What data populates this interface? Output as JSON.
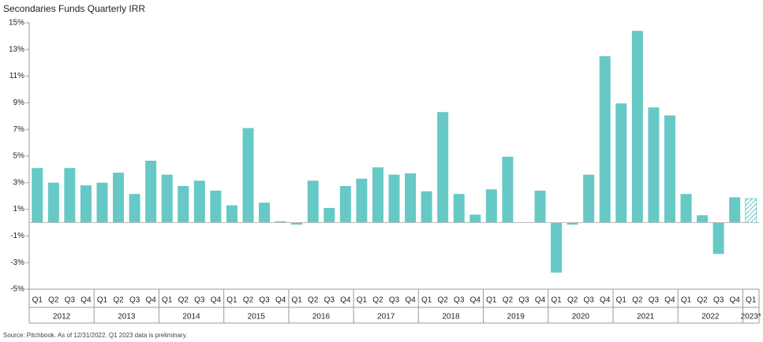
{
  "chart_data": {
    "type": "bar",
    "title": "Secondaries Funds Quarterly IRR",
    "source": "Source: Pitchbook. As of 12/31/2022. Q1 2023 data is preliminary.",
    "color": "#66c9c5",
    "ylim": [
      -5,
      15
    ],
    "yticks": [
      {
        "value": -5,
        "label": "-5%"
      },
      {
        "value": -3,
        "label": "-3%"
      },
      {
        "value": -1,
        "label": "-1%"
      },
      {
        "value": 1,
        "label": "1%"
      },
      {
        "value": 3,
        "label": "3%"
      },
      {
        "value": 5,
        "label": "5%"
      },
      {
        "value": 7,
        "label": "7%"
      },
      {
        "value": 9,
        "label": "9%"
      },
      {
        "value": 11,
        "label": "11%"
      },
      {
        "value": 13,
        "label": "13%"
      },
      {
        "value": 15,
        "label": "15%"
      }
    ],
    "groups": [
      {
        "name": "2012",
        "categories": [
          "Q1",
          "Q2",
          "Q3",
          "Q4"
        ],
        "values": [
          4.1,
          3.0,
          4.1,
          2.8
        ]
      },
      {
        "name": "2013",
        "categories": [
          "Q1",
          "Q2",
          "Q3",
          "Q4"
        ],
        "values": [
          3.0,
          3.75,
          2.15,
          4.65
        ]
      },
      {
        "name": "2014",
        "categories": [
          "Q1",
          "Q2",
          "Q3",
          "Q4"
        ],
        "values": [
          3.6,
          2.75,
          3.15,
          2.4
        ]
      },
      {
        "name": "2015",
        "categories": [
          "Q1",
          "Q2",
          "Q3",
          "Q4"
        ],
        "values": [
          1.3,
          7.1,
          1.5,
          0.1
        ]
      },
      {
        "name": "2016",
        "categories": [
          "Q1",
          "Q2",
          "Q3",
          "Q4"
        ],
        "values": [
          -0.15,
          3.15,
          1.1,
          2.75
        ]
      },
      {
        "name": "2017",
        "categories": [
          "Q1",
          "Q2",
          "Q3",
          "Q4"
        ],
        "values": [
          3.3,
          4.15,
          3.6,
          3.7
        ]
      },
      {
        "name": "2018",
        "categories": [
          "Q1",
          "Q2",
          "Q3",
          "Q4"
        ],
        "values": [
          2.35,
          8.3,
          2.15,
          0.6
        ]
      },
      {
        "name": "2019",
        "categories": [
          "Q1",
          "Q2",
          "Q3",
          "Q4"
        ],
        "values": [
          2.5,
          4.95,
          0,
          2.4
        ]
      },
      {
        "name": "2020",
        "categories": [
          "Q1",
          "Q2",
          "Q3",
          "Q4"
        ],
        "values": [
          -3.75,
          -0.15,
          3.6,
          12.5
        ]
      },
      {
        "name": "2021",
        "categories": [
          "Q1",
          "Q2",
          "Q3",
          "Q4"
        ],
        "values": [
          8.95,
          14.4,
          8.65,
          8.05
        ]
      },
      {
        "name": "2022",
        "categories": [
          "Q1",
          "Q2",
          "Q3",
          "Q4"
        ],
        "values": [
          2.15,
          0.55,
          -2.35,
          1.9
        ]
      },
      {
        "name": "2023*",
        "categories": [
          "Q1"
        ],
        "values": [
          1.8
        ],
        "pattern": "hatch"
      }
    ]
  }
}
